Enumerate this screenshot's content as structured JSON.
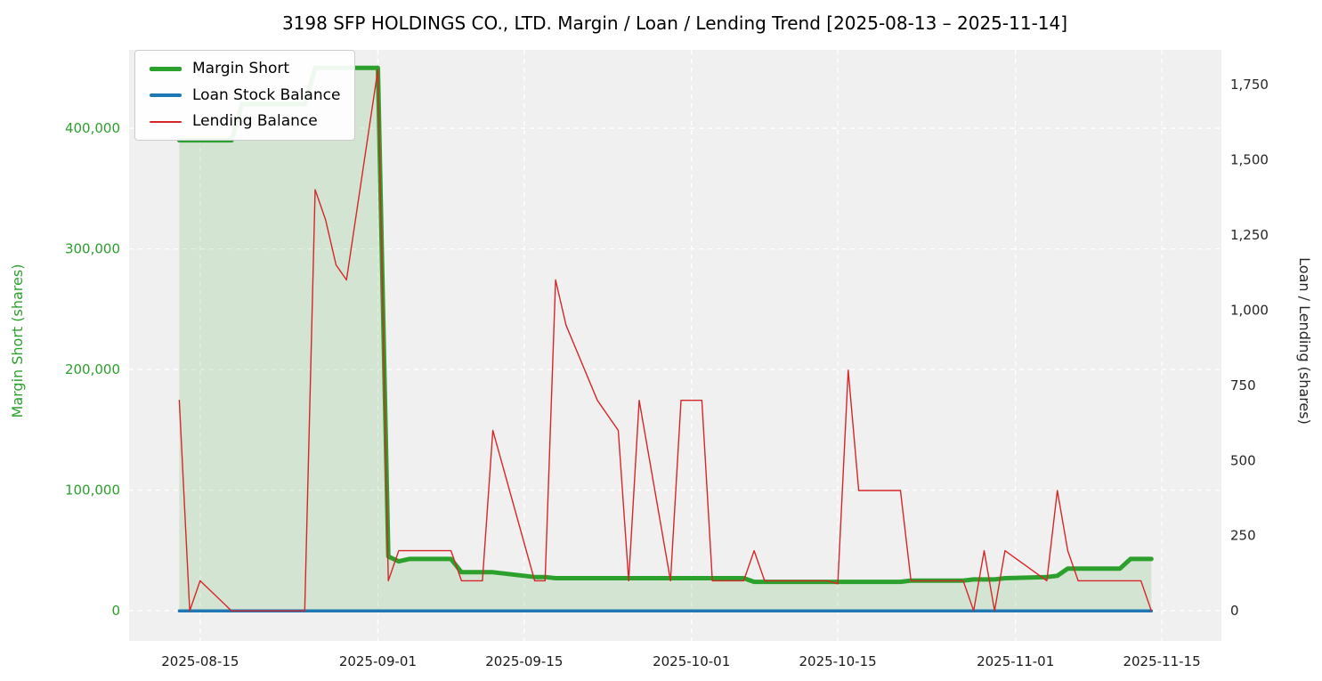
{
  "chart_data": {
    "type": "line",
    "title": "3198 SFP HOLDINGS CO., LTD. Margin / Loan / Lending Trend [2025-08-13 – 2025-11-14]",
    "plot_bg": "#f0f0f0",
    "grid_color": "#ffffff",
    "grid": true,
    "legend_position": "upper left",
    "left_axis": {
      "label": "Margin Short (shares)",
      "color": "#2ca02c",
      "ticks": [
        0,
        100000,
        200000,
        300000,
        400000
      ],
      "range": [
        -25000,
        465000
      ]
    },
    "right_axis": {
      "label": "Loan / Lending (shares)",
      "color": "#262626",
      "ticks": [
        0,
        250,
        500,
        750,
        1000,
        1250,
        1500,
        1750
      ],
      "range": [
        -100,
        1865
      ]
    },
    "x_axis": {
      "epoch": "2025-08-13",
      "range_days": [
        -4.8,
        99.7
      ],
      "ticks": [
        "2025-08-15",
        "2025-09-01",
        "2025-09-15",
        "2025-10-01",
        "2025-10-15",
        "2025-11-01",
        "2025-11-15"
      ],
      "tick_color": "#1a1a1a"
    },
    "dates": [
      "2025-08-13",
      "2025-08-14",
      "2025-08-15",
      "2025-08-18",
      "2025-08-19",
      "2025-08-20",
      "2025-08-21",
      "2025-08-22",
      "2025-08-25",
      "2025-08-26",
      "2025-08-27",
      "2025-08-28",
      "2025-08-29",
      "2025-09-01",
      "2025-09-02",
      "2025-09-03",
      "2025-09-04",
      "2025-09-05",
      "2025-09-08",
      "2025-09-09",
      "2025-09-10",
      "2025-09-11",
      "2025-09-12",
      "2025-09-16",
      "2025-09-17",
      "2025-09-18",
      "2025-09-19",
      "2025-09-22",
      "2025-09-24",
      "2025-09-25",
      "2025-09-26",
      "2025-09-29",
      "2025-09-30",
      "2025-10-01",
      "2025-10-02",
      "2025-10-03",
      "2025-10-06",
      "2025-10-07",
      "2025-10-08",
      "2025-10-09",
      "2025-10-10",
      "2025-10-14",
      "2025-10-15",
      "2025-10-16",
      "2025-10-17",
      "2025-10-20",
      "2025-10-21",
      "2025-10-22",
      "2025-10-23",
      "2025-10-24",
      "2025-10-27",
      "2025-10-28",
      "2025-10-29",
      "2025-10-30",
      "2025-10-31",
      "2025-11-04",
      "2025-11-05",
      "2025-11-06",
      "2025-11-07",
      "2025-11-10",
      "2025-11-11",
      "2025-11-12",
      "2025-11-13",
      "2025-11-14"
    ],
    "series": [
      {
        "name": "Margin Short",
        "axis": "left",
        "color": "#2ca02c",
        "width": 5,
        "fill": true,
        "fill_opacity": 0.15,
        "values": [
          390000,
          390000,
          390000,
          390000,
          420000,
          420000,
          420000,
          420000,
          420000,
          450000,
          450000,
          450000,
          450000,
          450000,
          45000,
          41000,
          43000,
          43000,
          43000,
          32000,
          32000,
          32000,
          32000,
          28000,
          28000,
          27000,
          27000,
          27000,
          27000,
          27000,
          27000,
          27000,
          27000,
          27000,
          27000,
          27000,
          27000,
          24000,
          24000,
          24000,
          24000,
          24000,
          24000,
          24000,
          24000,
          24000,
          24000,
          25000,
          25000,
          25000,
          25000,
          26000,
          26000,
          26000,
          27000,
          28000,
          29000,
          35000,
          35000,
          35000,
          35000,
          43000,
          43000,
          43000
        ]
      },
      {
        "name": "Loan Stock Balance",
        "axis": "right",
        "color": "#1f77b4",
        "width": 3.5,
        "fill": false,
        "values": [
          0,
          0,
          0,
          0,
          0,
          0,
          0,
          0,
          0,
          0,
          0,
          0,
          0,
          0,
          0,
          0,
          0,
          0,
          0,
          0,
          0,
          0,
          0,
          0,
          0,
          0,
          0,
          0,
          0,
          0,
          0,
          0,
          0,
          0,
          0,
          0,
          0,
          0,
          0,
          0,
          0,
          0,
          0,
          0,
          0,
          0,
          0,
          0,
          0,
          0,
          0,
          0,
          0,
          0,
          0,
          0,
          0,
          0,
          0,
          0,
          0,
          0,
          0,
          0
        ]
      },
      {
        "name": "Lending Balance",
        "axis": "right",
        "color": "#d62728",
        "width": 1.4,
        "fill": false,
        "values": [
          700,
          0,
          100,
          0,
          0,
          0,
          0,
          0,
          0,
          1400,
          1300,
          1150,
          1100,
          1800,
          100,
          200,
          200,
          200,
          200,
          100,
          100,
          100,
          600,
          100,
          100,
          1100,
          950,
          700,
          600,
          100,
          700,
          100,
          700,
          700,
          700,
          100,
          100,
          200,
          100,
          100,
          100,
          100,
          90,
          800,
          400,
          400,
          400,
          100,
          100,
          100,
          100,
          0,
          200,
          0,
          200,
          100,
          400,
          200,
          100,
          100,
          100,
          100,
          100,
          0
        ]
      }
    ]
  }
}
